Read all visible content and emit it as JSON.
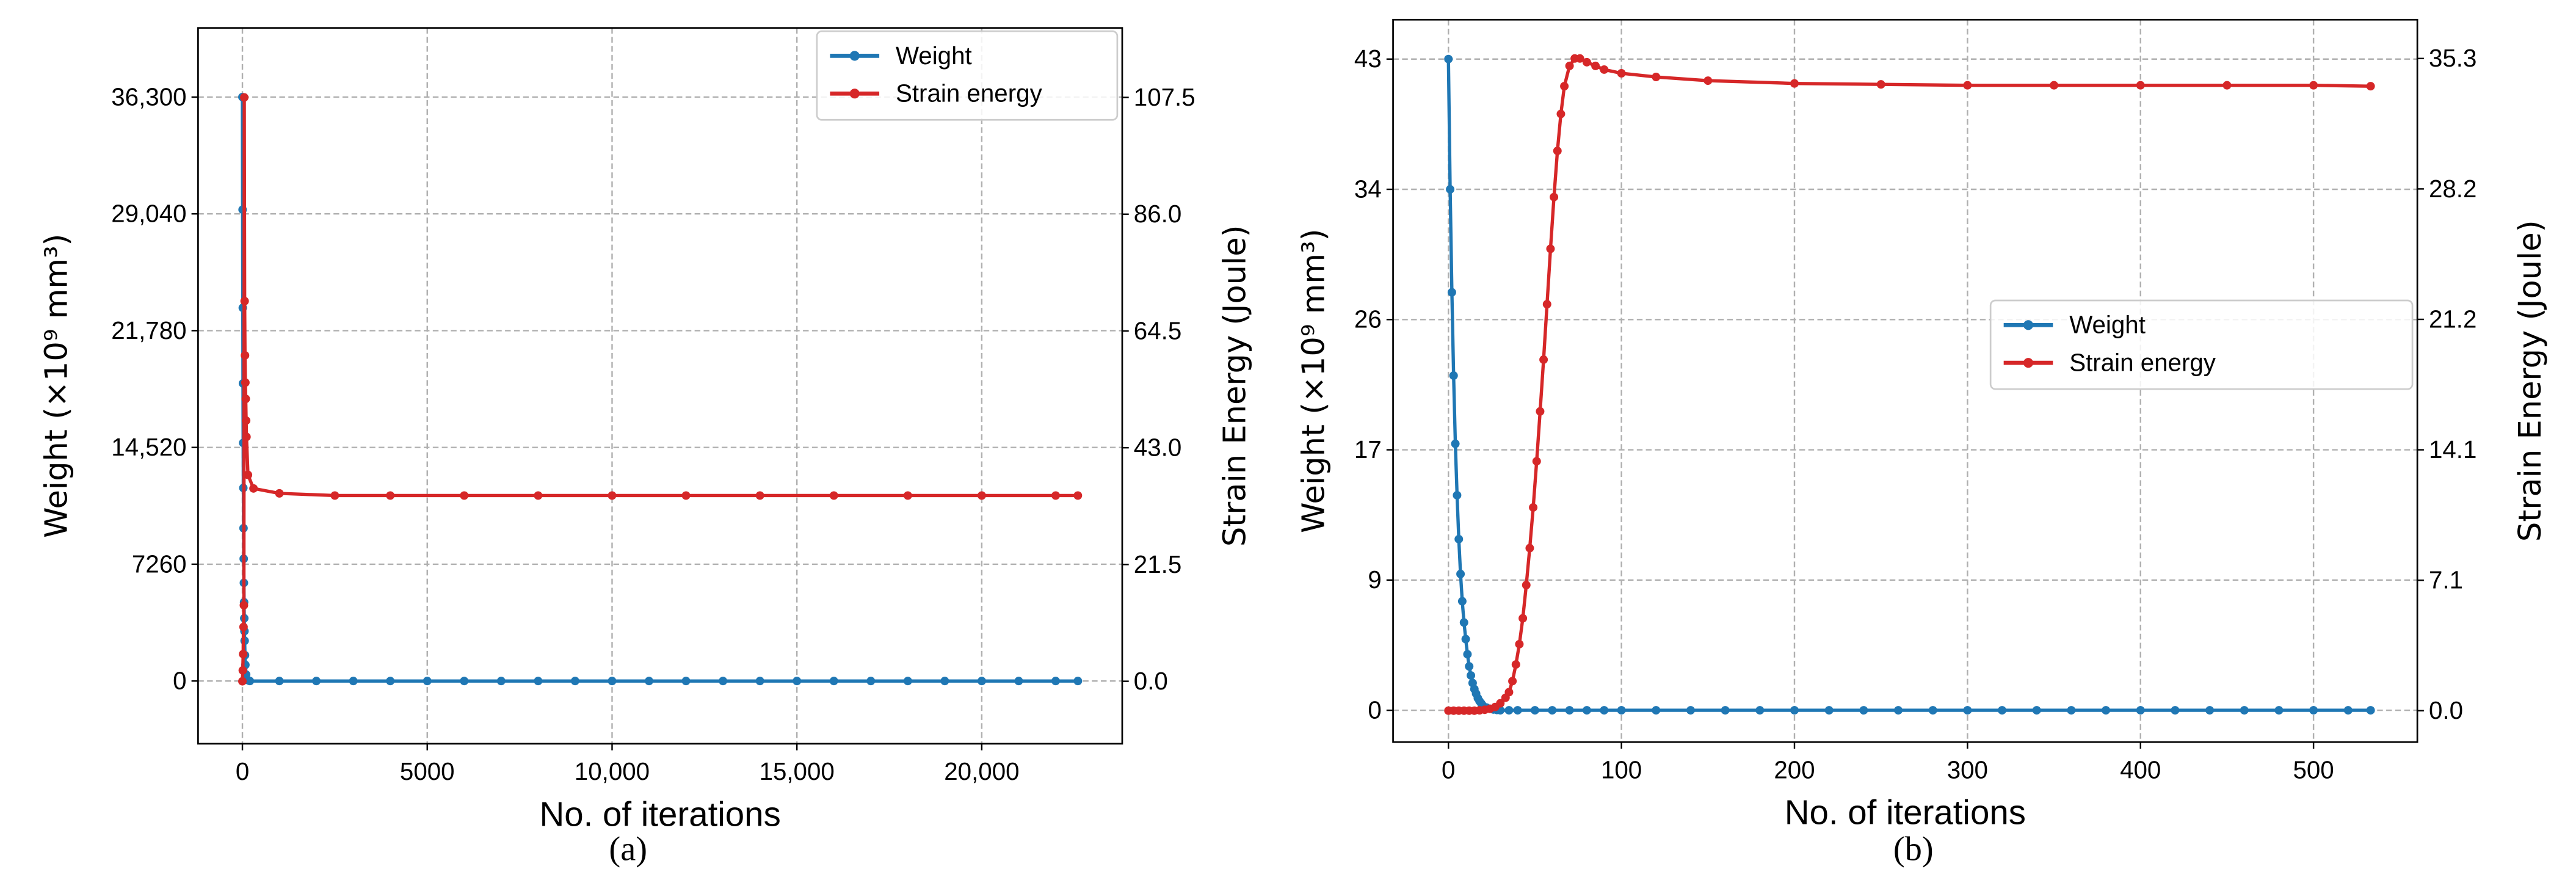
{
  "colors": {
    "weight": "#1f77b4",
    "strain": "#d62728",
    "grid": "#b0b0b0"
  },
  "chart_data": [
    {
      "type": "line",
      "caption": "(a)",
      "xlabel": "No. of iterations",
      "ylabel": "Weight (×10⁹ mm³)",
      "ylabel_right": "Strain Energy (Joule)",
      "xlim": [
        -1200,
        23800
      ],
      "ylim": [
        -3900,
        40600
      ],
      "ylim_right": [
        -11.5,
        120.3
      ],
      "xticks": [
        {
          "v": 0,
          "label": "0"
        },
        {
          "v": 5000,
          "label": "5000"
        },
        {
          "v": 10000,
          "label": "10,000"
        },
        {
          "v": 15000,
          "label": "15,000"
        },
        {
          "v": 20000,
          "label": "20,000"
        }
      ],
      "yticks": [
        {
          "v": 0,
          "label": "0"
        },
        {
          "v": 7260,
          "label": "7260"
        },
        {
          "v": 14520,
          "label": "14,520"
        },
        {
          "v": 21780,
          "label": "21,780"
        },
        {
          "v": 29040,
          "label": "29,040"
        },
        {
          "v": 36300,
          "label": "36,300"
        }
      ],
      "yticks_right": [
        {
          "v": 0,
          "label": "0.0"
        },
        {
          "v": 21.5,
          "label": "21.5"
        },
        {
          "v": 43,
          "label": "43.0"
        },
        {
          "v": 64.5,
          "label": "64.5"
        },
        {
          "v": 86,
          "label": "86.0"
        },
        {
          "v": 107.5,
          "label": "107.5"
        }
      ],
      "grid": true,
      "legend": {
        "placement": "top-right",
        "entries": [
          "Weight",
          "Strain energy"
        ]
      },
      "series": [
        {
          "name": "Weight",
          "axis": "left",
          "x": [
            0,
            5,
            10,
            15,
            20,
            25,
            30,
            35,
            40,
            45,
            50,
            55,
            60,
            70,
            80,
            100,
            150,
            200,
            1000,
            2000,
            3000,
            4000,
            5000,
            6000,
            7000,
            8000,
            9000,
            10000,
            11000,
            12000,
            13000,
            14000,
            15000,
            16000,
            17000,
            18000,
            19000,
            20000,
            21000,
            22000,
            22600
          ],
          "y": [
            36300,
            29300,
            23200,
            18500,
            14800,
            12000,
            9500,
            7600,
            6100,
            4900,
            3900,
            3100,
            2500,
            1600,
            1000,
            400,
            50,
            0,
            0,
            0,
            0,
            0,
            0,
            0,
            0,
            0,
            0,
            0,
            0,
            0,
            0,
            0,
            0,
            0,
            0,
            0,
            0,
            0,
            0,
            0,
            0
          ]
        },
        {
          "name": "Strain energy",
          "axis": "right",
          "x": [
            0,
            10,
            20,
            30,
            40,
            50,
            60,
            70,
            80,
            90,
            100,
            110,
            150,
            300,
            1000,
            2500,
            4000,
            6000,
            8000,
            10000,
            12000,
            14000,
            16000,
            18000,
            20000,
            22000,
            22600
          ],
          "y": [
            0,
            2,
            5,
            10,
            14,
            107.5,
            70,
            60,
            55,
            52,
            48,
            45,
            38,
            35.5,
            34.6,
            34.2,
            34.2,
            34.2,
            34.2,
            34.2,
            34.2,
            34.2,
            34.2,
            34.2,
            34.2,
            34.2,
            34.2
          ]
        }
      ]
    },
    {
      "type": "line",
      "caption": "(b)",
      "xlabel": "No. of iterations",
      "ylabel": "Weight (×10⁹ mm³)",
      "ylabel_right": "Strain Energy (Joule)",
      "xlim": [
        -32,
        560
      ],
      "ylim": [
        -2.1,
        45.6
      ],
      "ylim_right": [
        -1.7,
        37.4
      ],
      "xticks": [
        {
          "v": 0,
          "label": "0"
        },
        {
          "v": 100,
          "label": "100"
        },
        {
          "v": 200,
          "label": "200"
        },
        {
          "v": 300,
          "label": "300"
        },
        {
          "v": 400,
          "label": "400"
        },
        {
          "v": 500,
          "label": "500"
        }
      ],
      "yticks": [
        {
          "v": 0,
          "label": "0"
        },
        {
          "v": 8.6,
          "label": "9"
        },
        {
          "v": 17.2,
          "label": "17"
        },
        {
          "v": 25.8,
          "label": "26"
        },
        {
          "v": 34.4,
          "label": "34"
        },
        {
          "v": 43,
          "label": "43"
        }
      ],
      "yticks_right": [
        {
          "v": 0,
          "label": "0.0"
        },
        {
          "v": 7.06,
          "label": "7.1"
        },
        {
          "v": 14.12,
          "label": "14.1"
        },
        {
          "v": 21.18,
          "label": "21.2"
        },
        {
          "v": 28.24,
          "label": "28.2"
        },
        {
          "v": 35.3,
          "label": "35.3"
        }
      ],
      "grid": true,
      "legend": {
        "placement": "center-right",
        "entries": [
          "Weight",
          "Strain energy"
        ]
      },
      "series": [
        {
          "name": "Weight",
          "axis": "left",
          "x": [
            0,
            1,
            2,
            3,
            4,
            5,
            6,
            7,
            8,
            9,
            10,
            11,
            12,
            13,
            14,
            15,
            16,
            17,
            18,
            19,
            20,
            22,
            24,
            26,
            28,
            30,
            35,
            40,
            50,
            60,
            70,
            80,
            90,
            100,
            120,
            140,
            160,
            180,
            200,
            220,
            240,
            260,
            280,
            300,
            320,
            340,
            360,
            380,
            400,
            420,
            440,
            460,
            480,
            500,
            520,
            533
          ],
          "y": [
            43,
            34.4,
            27.6,
            22.1,
            17.6,
            14.2,
            11.3,
            9,
            7.2,
            5.8,
            4.7,
            3.7,
            2.9,
            2.3,
            1.8,
            1.4,
            1.1,
            0.8,
            0.6,
            0.45,
            0.3,
            0.18,
            0.1,
            0.05,
            0.02,
            0,
            0,
            0,
            0,
            0,
            0,
            0,
            0,
            0,
            0,
            0,
            0,
            0,
            0,
            0,
            0,
            0,
            0,
            0,
            0,
            0,
            0,
            0,
            0,
            0,
            0,
            0,
            0,
            0,
            0,
            0
          ]
        },
        {
          "name": "Strain energy",
          "axis": "right",
          "x": [
            0,
            3,
            6,
            9,
            12,
            15,
            18,
            21,
            24,
            27,
            30,
            33,
            35,
            37,
            39,
            41,
            43,
            45,
            47,
            49,
            51,
            53,
            55,
            57,
            59,
            61,
            63,
            65,
            67,
            70,
            73,
            76,
            80,
            85,
            90,
            100,
            120,
            150,
            200,
            250,
            300,
            350,
            400,
            450,
            500,
            533
          ],
          "y": [
            0,
            0,
            0,
            0,
            0,
            0,
            0.02,
            0.05,
            0.1,
            0.2,
            0.4,
            0.7,
            1.0,
            1.6,
            2.5,
            3.6,
            5,
            6.8,
            8.8,
            11,
            13.5,
            16.2,
            19,
            22,
            25,
            27.8,
            30.3,
            32.3,
            33.8,
            34.9,
            35.3,
            35.3,
            35.1,
            34.9,
            34.7,
            34.5,
            34.3,
            34.1,
            33.95,
            33.9,
            33.85,
            33.85,
            33.85,
            33.85,
            33.85,
            33.8
          ]
        }
      ]
    }
  ]
}
